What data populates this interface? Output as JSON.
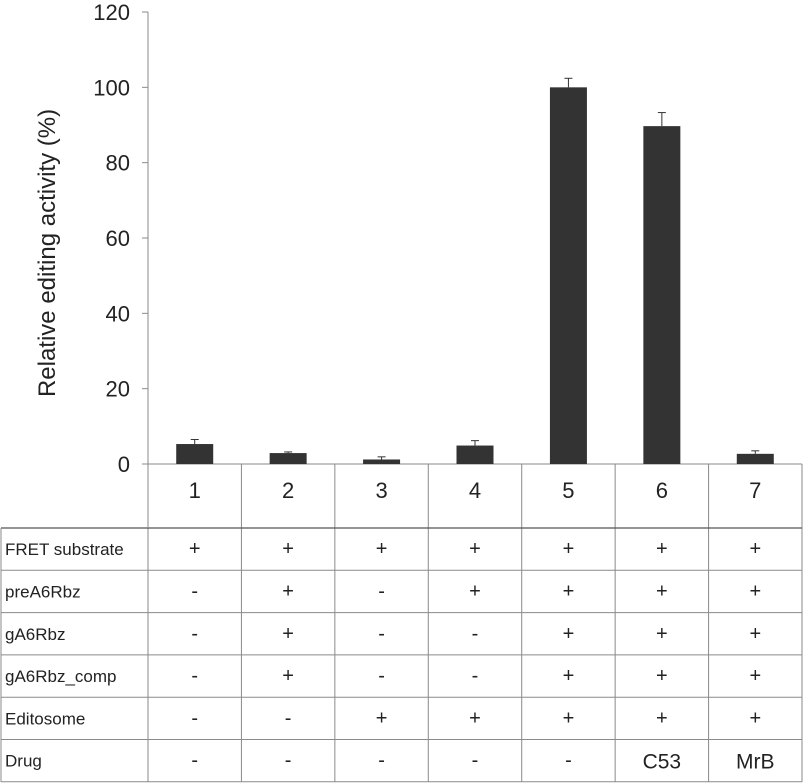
{
  "chart_data": {
    "type": "bar",
    "ylabel": "Relative editing activity (%)",
    "ylim": [
      0,
      120
    ],
    "yticks": [
      0,
      20,
      40,
      60,
      80,
      100,
      120
    ],
    "categories": [
      "1",
      "2",
      "3",
      "4",
      "5",
      "6",
      "7"
    ],
    "values": [
      5.3,
      2.9,
      1.2,
      4.9,
      100,
      89.7,
      2.7
    ],
    "errors": [
      1.2,
      0.3,
      0.7,
      1.3,
      2.4,
      3.6,
      0.8
    ],
    "bar_color": "#333333",
    "grid": false
  },
  "table": {
    "rows": [
      {
        "label": "FRET substrate",
        "cells": [
          "+",
          "+",
          "+",
          "+",
          "+",
          "+",
          "+"
        ]
      },
      {
        "label": "preA6Rbz",
        "cells": [
          "-",
          "+",
          "-",
          "+",
          "+",
          "+",
          "+"
        ]
      },
      {
        "label": "gA6Rbz",
        "cells": [
          "-",
          "+",
          "-",
          "-",
          "+",
          "+",
          "+"
        ]
      },
      {
        "label": "gA6Rbz_comp",
        "cells": [
          "-",
          "+",
          "-",
          "-",
          "+",
          "+",
          "+"
        ]
      },
      {
        "label": "Editosome",
        "cells": [
          "-",
          "-",
          "+",
          "+",
          "+",
          "+",
          "+"
        ]
      },
      {
        "label": "Drug",
        "cells": [
          "-",
          "-",
          "-",
          "-",
          "-",
          "C53",
          "MrB"
        ]
      }
    ]
  }
}
